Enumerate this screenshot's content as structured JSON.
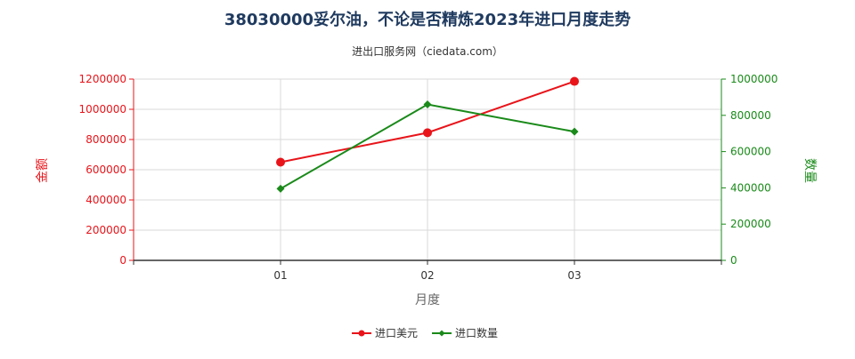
{
  "chart_data": {
    "type": "line",
    "title": "38030000妥尔油，不论是否精炼2023年进口月度走势",
    "subtitle": "进出口服务网（ciedata.com）",
    "xlabel": "月度",
    "ylabel_left": "金额",
    "ylabel_right": "数量",
    "categories": [
      "01",
      "02",
      "03"
    ],
    "ylim_left": [
      0,
      1200000
    ],
    "ylim_right": [
      0,
      1000000
    ],
    "yticks_left": [
      "0",
      "200000",
      "400000",
      "600000",
      "800000",
      "1000000",
      "1200000"
    ],
    "yticks_right": [
      "0",
      "200000",
      "400000",
      "600000",
      "800000",
      "1000000"
    ],
    "grid": true,
    "legend_position": "bottom",
    "series": [
      {
        "name": "进口美元",
        "axis": "left",
        "color": "#e8141a",
        "marker": "circle",
        "values": [
          650000,
          845000,
          1185000
        ]
      },
      {
        "name": "进口数量",
        "axis": "right",
        "color": "#1a8a1a",
        "marker": "diamond",
        "values": [
          395000,
          860000,
          710000
        ]
      }
    ]
  }
}
